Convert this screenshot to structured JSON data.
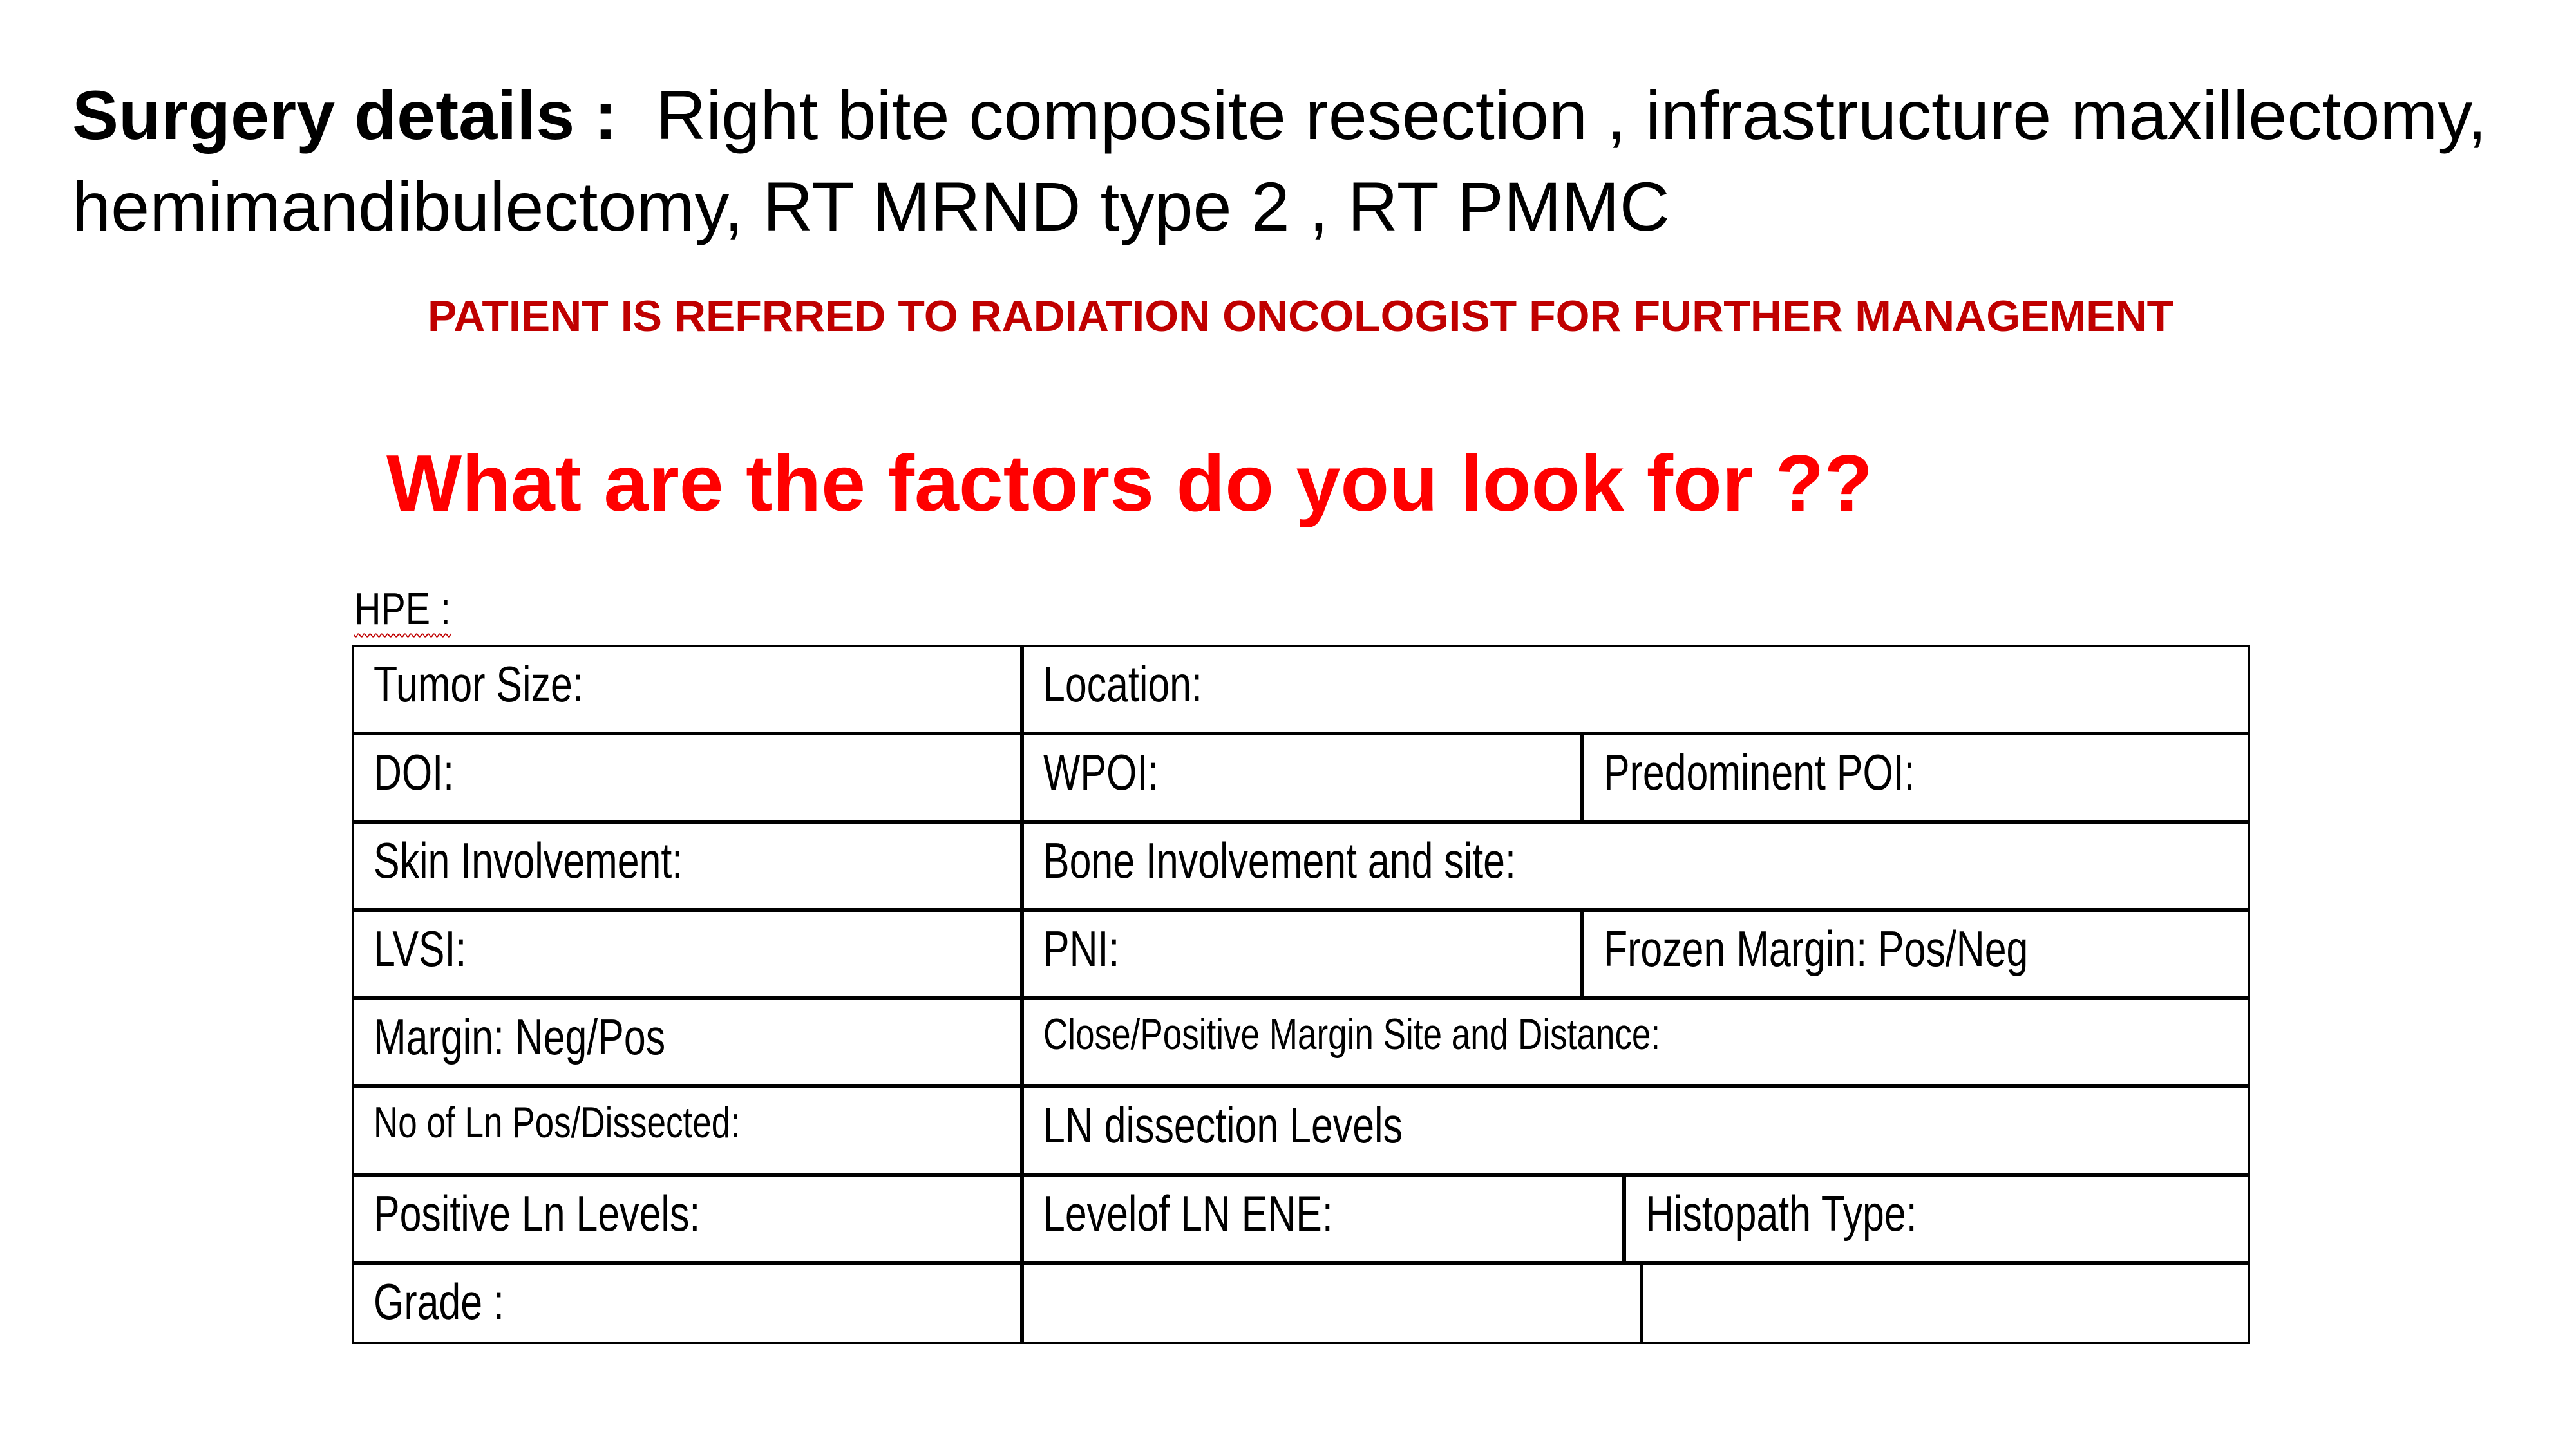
{
  "surgery": {
    "label": "Surgery details :",
    "text": "Right bite composite resection , infrastructure maxillectomy, hemimandibulectomy, RT MRND type 2 , RT PMMC"
  },
  "referral": "PATIENT IS REFRRED TO RADIATION ONCOLOGIST FOR FURTHER MANAGEMENT",
  "question": "What are the factors do you look for ??",
  "hpe": {
    "label": "HPE :",
    "fields": {
      "tumor_size": "Tumor Size:",
      "location": "Location:",
      "doi": "DOI:",
      "wpoi": "WPOI:",
      "predominent_poi": "Predominent POI:",
      "skin_involvement": "Skin Involvement:",
      "bone_involvement": "Bone Involvement and site:",
      "lvsi": "LVSI:",
      "pni": "PNI:",
      "frozen_margin": "Frozen Margin: Pos/Neg",
      "margin_label": "Margin:",
      "margin_value": "Neg/Pos",
      "close_positive_margin": "Close/Positive Margin Site and Distance:",
      "no_of_ln": "No of Ln Pos/Dissected:",
      "ln_dissection_levels": "LN dissection Levels",
      "positive_ln_levels": "Positive Ln Levels:",
      "level_of_ln_ene": "Levelof LN ENE:",
      "histopath_type": "Histopath Type:",
      "grade": "Grade :"
    }
  },
  "colors": {
    "referral": "#c00000",
    "question": "#ff0000",
    "text": "#000000"
  }
}
